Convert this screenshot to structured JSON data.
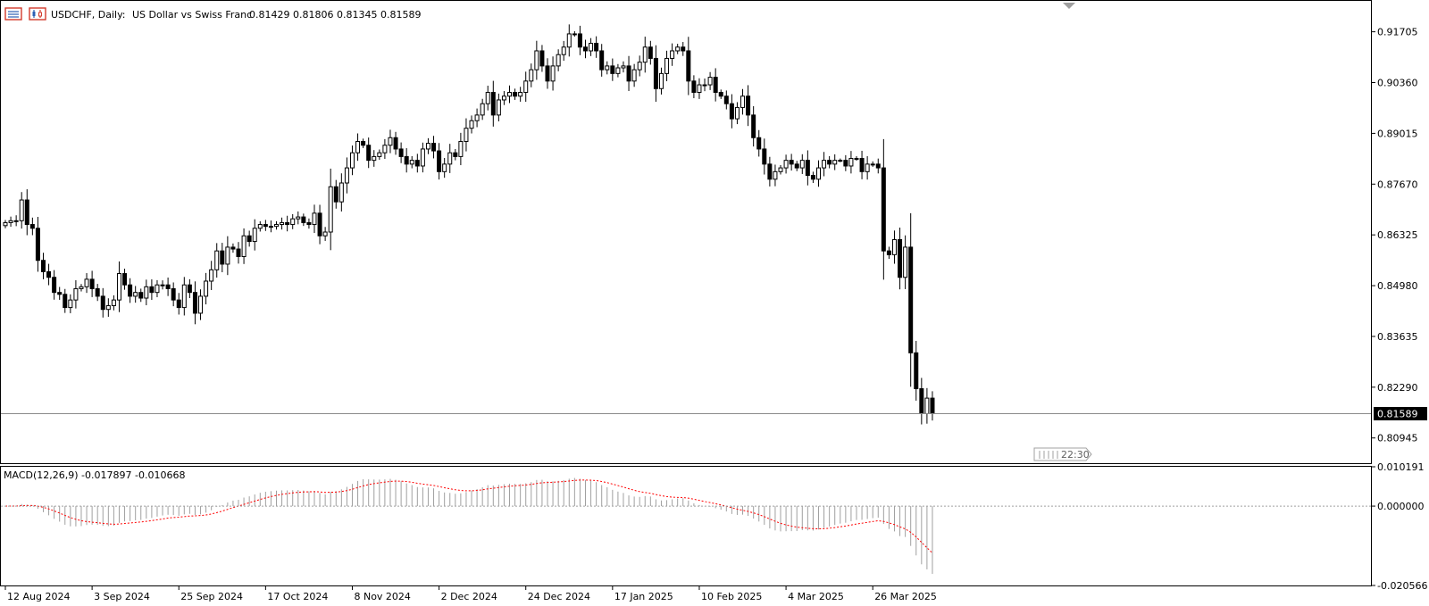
{
  "header": {
    "symbol_text": "USDCHF, Daily:",
    "description": "US Dollar vs Swiss Franc",
    "ohlc": "0.81429 0.81806 0.81345 0.81589"
  },
  "price_tag": "0.81589",
  "time_tag": "22:30",
  "macd": {
    "label": "MACD(12,26,9) -0.017897 -0.010668",
    "value": -0.017897,
    "signal": -0.010668,
    "y_labels": [
      "0.010191",
      "0.000000",
      "-0.020566"
    ],
    "ylim": [
      -0.020566,
      0.010191
    ]
  },
  "colors": {
    "bull_body": "#ffffff",
    "bear_body": "#000000",
    "wick": "#000000",
    "macd_hist": "#a0a0a0",
    "signal_line": "#ff0000",
    "grid_line": "#000000"
  },
  "chart_data": {
    "type": "candlestick",
    "symbol": "USDCHF",
    "timeframe": "Daily",
    "ylim": [
      0.803,
      0.925
    ],
    "y_ticks": [
      "0.91705",
      "0.90360",
      "0.89015",
      "0.87670",
      "0.86325",
      "0.84980",
      "0.83635",
      "0.82290",
      "0.80945"
    ],
    "x_labels": [
      "12 Aug 2024",
      "3 Sep 2024",
      "25 Sep 2024",
      "17 Oct 2024",
      "8 Nov 2024",
      "2 Dec 2024",
      "24 Dec 2024",
      "17 Jan 2025",
      "10 Feb 2025",
      "4 Mar 2025",
      "26 Mar 2025"
    ],
    "x_label_bar_index": [
      0,
      16,
      32,
      48,
      64,
      80,
      96,
      112,
      128,
      144,
      160
    ],
    "last_price": 0.81589,
    "closes": [
      0.8665,
      0.867,
      0.867,
      0.8725,
      0.866,
      0.865,
      0.8565,
      0.8535,
      0.852,
      0.848,
      0.8475,
      0.844,
      0.846,
      0.849,
      0.8495,
      0.8515,
      0.849,
      0.847,
      0.8435,
      0.8445,
      0.846,
      0.853,
      0.85,
      0.847,
      0.848,
      0.8465,
      0.8495,
      0.848,
      0.85,
      0.85,
      0.849,
      0.846,
      0.844,
      0.85,
      0.848,
      0.8425,
      0.847,
      0.851,
      0.854,
      0.859,
      0.8555,
      0.86,
      0.8595,
      0.8575,
      0.863,
      0.8615,
      0.865,
      0.866,
      0.8655,
      0.8655,
      0.866,
      0.8665,
      0.866,
      0.8675,
      0.868,
      0.8665,
      0.866,
      0.869,
      0.863,
      0.864,
      0.876,
      0.872,
      0.877,
      0.881,
      0.885,
      0.888,
      0.887,
      0.883,
      0.884,
      0.885,
      0.887,
      0.889,
      0.886,
      0.884,
      0.882,
      0.883,
      0.8815,
      0.886,
      0.8875,
      0.8855,
      0.88,
      0.882,
      0.885,
      0.884,
      0.888,
      0.8915,
      0.8935,
      0.895,
      0.898,
      0.901,
      0.895,
      0.899,
      0.9,
      0.901,
      0.9,
      0.901,
      0.904,
      0.907,
      0.912,
      0.908,
      0.904,
      0.908,
      0.911,
      0.913,
      0.9165,
      0.9165,
      0.913,
      0.912,
      0.914,
      0.912,
      0.907,
      0.908,
      0.906,
      0.9075,
      0.908,
      0.904,
      0.907,
      0.909,
      0.913,
      0.91,
      0.902,
      0.906,
      0.91,
      0.912,
      0.913,
      0.912,
      0.904,
      0.901,
      0.903,
      0.903,
      0.905,
      0.901,
      0.9,
      0.898,
      0.894,
      0.897,
      0.9,
      0.895,
      0.889,
      0.886,
      0.882,
      0.878,
      0.88,
      0.881,
      0.883,
      0.882,
      0.881,
      0.883,
      0.879,
      0.878,
      0.881,
      0.883,
      0.882,
      0.883,
      0.883,
      0.8815,
      0.8835,
      0.8835,
      0.88,
      0.882,
      0.882,
      0.881,
      0.859,
      0.858,
      0.862,
      0.852,
      0.86,
      0.832,
      0.8225,
      0.8159,
      0.82,
      0.8159
    ]
  }
}
